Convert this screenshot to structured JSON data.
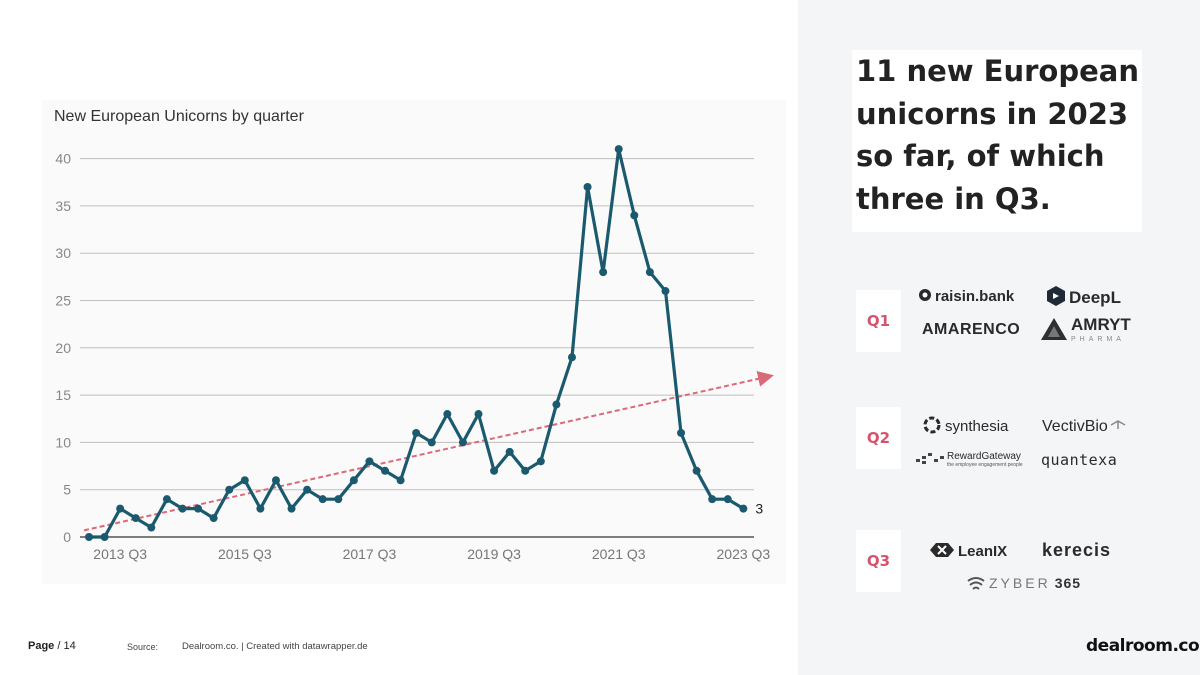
{
  "headline": "11 new European unicorns in 2023 so far, of which three in Q3.",
  "quarters": [
    {
      "label": "Q1",
      "logos": [
        "raisin.bank",
        "DeepL",
        "AMARENCO",
        "AMRYT",
        "PHARMA"
      ]
    },
    {
      "label": "Q2",
      "logos": [
        "synthesia",
        "VectivBio",
        "RewardGateway",
        "the employee engagement people",
        "quantexa"
      ]
    },
    {
      "label": "Q3",
      "logos": [
        "LeanIX",
        "kerecis",
        "ZYBER",
        "365"
      ]
    }
  ],
  "footer": {
    "page_word": "Page",
    "page_rest": " / 14",
    "source_label": "Source:",
    "source_text": "Dealroom.co. | Created with datawrapper.de",
    "brand": "dealroom.co"
  },
  "colors": {
    "line": "#1b5a6e",
    "trend": "#d96a78",
    "accent": "#d6536d",
    "grid": "#bfbfbf"
  },
  "chart_data": {
    "type": "line",
    "title": "New European Unicorns by quarter",
    "xlabel": "",
    "ylabel": "",
    "ylim": [
      0,
      40
    ],
    "y_ticks": [
      "0",
      "5",
      "10",
      "15",
      "20",
      "25",
      "30",
      "35",
      "40"
    ],
    "x_tick_labels": [
      "2013 Q3",
      "2015 Q3",
      "2017 Q3",
      "2019 Q3",
      "2021 Q3",
      "2023 Q3"
    ],
    "x": [
      "2013 Q1",
      "2013 Q2",
      "2013 Q3",
      "2013 Q4",
      "2014 Q1",
      "2014 Q2",
      "2014 Q3",
      "2014 Q4",
      "2015 Q1",
      "2015 Q2",
      "2015 Q3",
      "2015 Q4",
      "2016 Q1",
      "2016 Q2",
      "2016 Q3",
      "2016 Q4",
      "2017 Q1",
      "2017 Q2",
      "2017 Q3",
      "2017 Q4",
      "2018 Q1",
      "2018 Q2",
      "2018 Q3",
      "2018 Q4",
      "2019 Q1",
      "2019 Q2",
      "2019 Q3",
      "2019 Q4",
      "2020 Q1",
      "2020 Q2",
      "2020 Q3",
      "2020 Q4",
      "2021 Q1",
      "2021 Q2",
      "2021 Q3",
      "2021 Q4",
      "2022 Q1",
      "2022 Q2",
      "2022 Q3",
      "2022 Q4",
      "2023 Q1",
      "2023 Q2",
      "2023 Q3"
    ],
    "series": [
      {
        "values": [
          0,
          0,
          3,
          2,
          1,
          4,
          3,
          3,
          2,
          5,
          6,
          3,
          6,
          3,
          5,
          4,
          4,
          6,
          8,
          7,
          6,
          11,
          10,
          13,
          10,
          13,
          7,
          9,
          7,
          8,
          14,
          19,
          37,
          28,
          41,
          34,
          28,
          26,
          11,
          7,
          4,
          4,
          3
        ]
      }
    ],
    "trend_line": {
      "from": 0.7,
      "to": 17.0
    },
    "end_label": "3",
    "grid": true,
    "legend": "none"
  }
}
